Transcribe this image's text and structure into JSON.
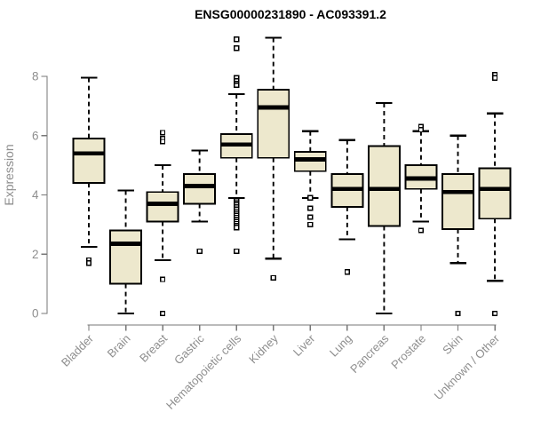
{
  "chart_data": {
    "type": "boxplot",
    "title": "ENSG00000231890 - AC093391.2",
    "xlabel": "",
    "ylabel": "Expression",
    "yticks": [
      0,
      2,
      4,
      6,
      8
    ],
    "ylim": [
      0,
      9.6
    ],
    "grid": false,
    "legend": "none",
    "colors": {
      "box_fill": "#EDE8CD",
      "box_stroke": "#000000",
      "median": "#000000",
      "whisker": "#000000",
      "outlier_stroke": "#000000",
      "outlier_fill": "#ffffff",
      "axis": "#777777",
      "text_gray": "#8e8e8e",
      "title_color": "#000000",
      "background": "#ffffff"
    },
    "categories": [
      "Bladder",
      "Brain",
      "Breast",
      "Gastric",
      "Hematopoietic cells",
      "Kidney",
      "Liver",
      "Lung",
      "Pancreas",
      "Prostate",
      "Skin",
      "Unknown / Other"
    ],
    "series": [
      {
        "category": "Bladder",
        "low": 2.25,
        "q1": 4.4,
        "median": 5.4,
        "q3": 5.9,
        "high": 7.95,
        "outliers": [
          1.8,
          1.7
        ]
      },
      {
        "category": "Brain",
        "low": 0.0,
        "q1": 1.0,
        "median": 2.35,
        "q3": 2.8,
        "high": 4.15,
        "outliers": []
      },
      {
        "category": "Breast",
        "low": 1.8,
        "q1": 3.1,
        "median": 3.7,
        "q3": 4.1,
        "high": 5.0,
        "outliers": [
          6.1,
          5.9,
          5.8,
          1.15,
          0.0
        ]
      },
      {
        "category": "Gastric",
        "low": 3.1,
        "q1": 3.7,
        "median": 4.3,
        "q3": 4.7,
        "high": 5.5,
        "outliers": [
          2.1
        ]
      },
      {
        "category": "Hematopoietic cells",
        "low": 3.9,
        "q1": 5.25,
        "median": 5.7,
        "q3": 6.05,
        "high": 7.4,
        "outliers": [
          9.25,
          8.95,
          7.95,
          7.85,
          7.75,
          7.7,
          3.8,
          3.73,
          3.66,
          3.59,
          3.52,
          3.45,
          3.38,
          3.31,
          3.24,
          3.17,
          3.1,
          3.03,
          2.96,
          2.9,
          2.1
        ]
      },
      {
        "category": "Kidney",
        "low": 1.85,
        "q1": 5.25,
        "median": 6.95,
        "q3": 7.55,
        "high": 9.3,
        "outliers": [
          1.2
        ]
      },
      {
        "category": "Liver",
        "low": 3.9,
        "q1": 4.8,
        "median": 5.2,
        "q3": 5.45,
        "high": 6.15,
        "outliers": [
          3.9,
          3.55,
          3.25,
          3.0
        ]
      },
      {
        "category": "Lung",
        "low": 2.5,
        "q1": 3.6,
        "median": 4.2,
        "q3": 4.7,
        "high": 5.85,
        "outliers": [
          1.4
        ]
      },
      {
        "category": "Pancreas",
        "low": 0.0,
        "q1": 2.95,
        "median": 4.2,
        "q3": 5.65,
        "high": 7.1,
        "outliers": []
      },
      {
        "category": "Prostate",
        "low": 3.1,
        "q1": 4.2,
        "median": 4.55,
        "q3": 5.0,
        "high": 6.15,
        "outliers": [
          6.3,
          6.2,
          2.8
        ]
      },
      {
        "category": "Skin",
        "low": 1.7,
        "q1": 2.85,
        "median": 4.1,
        "q3": 4.7,
        "high": 6.0,
        "outliers": [
          0.0
        ]
      },
      {
        "category": "Unknown / Other",
        "low": 1.1,
        "q1": 3.2,
        "median": 4.2,
        "q3": 4.9,
        "high": 6.75,
        "outliers": [
          8.05,
          7.95,
          0.0
        ]
      }
    ]
  }
}
